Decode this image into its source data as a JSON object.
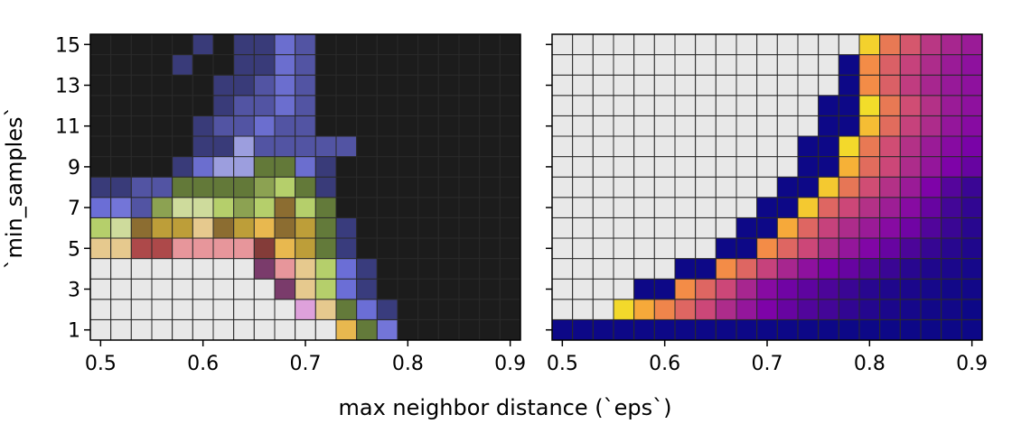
{
  "figure": {
    "xlabel": "max neighbor distance (`eps`)",
    "ylabel": "`min_samples`"
  },
  "chart_data": [
    {
      "type": "heatmap",
      "panel": "left",
      "xticks": [
        "0.5",
        "0.6",
        "0.7",
        "0.8",
        "0.9"
      ],
      "yticks": [
        "1",
        "3",
        "5",
        "7",
        "9",
        "11",
        "13",
        "15"
      ],
      "x": [
        0.5,
        0.52,
        0.54,
        0.56,
        0.58,
        0.6,
        0.62,
        0.64,
        0.66,
        0.68,
        0.7,
        0.72,
        0.74,
        0.76,
        0.78,
        0.8,
        0.82,
        0.84,
        0.86,
        0.88,
        0.9
      ],
      "y": [
        1,
        2,
        3,
        4,
        5,
        6,
        7,
        8,
        9,
        10,
        11,
        12,
        13,
        14,
        15
      ],
      "xlim": [
        0.49,
        0.91
      ],
      "ylim": [
        0.5,
        15.5
      ],
      "grid": true,
      "cell_colors": [
        [
          "#e8e8e8",
          "#e8e8e8",
          "#e8e8e8",
          "#e8e8e8",
          "#e8e8e8",
          "#e8e8e8",
          "#e8e8e8",
          "#e8e8e8",
          "#e8e8e8",
          "#e8e8e8",
          "#e8e8e8",
          "#e8e8e8",
          "#e8b84f",
          "#637a3a",
          "#7375d8",
          "#1c1c1c",
          "#1c1c1c",
          "#1c1c1c",
          "#1c1c1c",
          "#1c1c1c",
          "#1c1c1c"
        ],
        [
          "#e8e8e8",
          "#e8e8e8",
          "#e8e8e8",
          "#e8e8e8",
          "#e8e8e8",
          "#e8e8e8",
          "#e8e8e8",
          "#e8e8e8",
          "#e8e8e8",
          "#e8e8e8",
          "#dea1db",
          "#e6c98e",
          "#637a3a",
          "#6b6ed6",
          "#393c7d",
          "#1c1c1c",
          "#1c1c1c",
          "#1c1c1c",
          "#1c1c1c",
          "#1c1c1c",
          "#1c1c1c"
        ],
        [
          "#e8e8e8",
          "#e8e8e8",
          "#e8e8e8",
          "#e8e8e8",
          "#e8e8e8",
          "#e8e8e8",
          "#e8e8e8",
          "#e8e8e8",
          "#e8e8e8",
          "#7a3b6b",
          "#e6c98e",
          "#b5cf6b",
          "#6b6ed6",
          "#393c7d",
          "#1c1c1c",
          "#1c1c1c",
          "#1c1c1c",
          "#1c1c1c",
          "#1c1c1c",
          "#1c1c1c",
          "#1c1c1c"
        ],
        [
          "#e8e8e8",
          "#e8e8e8",
          "#e8e8e8",
          "#e8e8e8",
          "#e8e8e8",
          "#e8e8e8",
          "#e8e8e8",
          "#e8e8e8",
          "#7a3b6b",
          "#e7969b",
          "#e6c98e",
          "#b5cf6b",
          "#6b6ed6",
          "#393c7d",
          "#1c1c1c",
          "#1c1c1c",
          "#1c1c1c",
          "#1c1c1c",
          "#1c1c1c",
          "#1c1c1c",
          "#1c1c1c"
        ],
        [
          "#e6c98e",
          "#e6c98e",
          "#ad494a",
          "#ad494a",
          "#e7969b",
          "#e7969b",
          "#e7969b",
          "#e7969b",
          "#843c39",
          "#e8b84f",
          "#bd9e39",
          "#637a3a",
          "#393c7d",
          "#1c1c1c",
          "#1c1c1c",
          "#1c1c1c",
          "#1c1c1c",
          "#1c1c1c",
          "#1c1c1c",
          "#1c1c1c",
          "#1c1c1c"
        ],
        [
          "#b5cf6b",
          "#cedb9c",
          "#8c6d31",
          "#bd9e39",
          "#bd9e39",
          "#e6c98e",
          "#8c6d31",
          "#bd9e39",
          "#e8b84f",
          "#8c6d31",
          "#bd9e39",
          "#637a3a",
          "#393c7d",
          "#1c1c1c",
          "#1c1c1c",
          "#1c1c1c",
          "#1c1c1c",
          "#1c1c1c",
          "#1c1c1c",
          "#1c1c1c",
          "#1c1c1c"
        ],
        [
          "#6b6ed6",
          "#7375d8",
          "#5254a3",
          "#8ca252",
          "#cedb9c",
          "#cedb9c",
          "#b5cf6b",
          "#8ca252",
          "#b5cf6b",
          "#8c6d31",
          "#b5cf6b",
          "#637a3a",
          "#1c1c1c",
          "#1c1c1c",
          "#1c1c1c",
          "#1c1c1c",
          "#1c1c1c",
          "#1c1c1c",
          "#1c1c1c",
          "#1c1c1c",
          "#1c1c1c"
        ],
        [
          "#393b79",
          "#393b79",
          "#5254a3",
          "#5254a3",
          "#637939",
          "#637939",
          "#637939",
          "#637939",
          "#8ca252",
          "#b5cf6b",
          "#637939",
          "#393b79",
          "#1c1c1c",
          "#1c1c1c",
          "#1c1c1c",
          "#1c1c1c",
          "#1c1c1c",
          "#1c1c1c",
          "#1c1c1c",
          "#1c1c1c",
          "#1c1c1c"
        ],
        [
          "#1c1c1c",
          "#1c1c1c",
          "#1c1c1c",
          "#1c1c1c",
          "#393b79",
          "#6b6ecf",
          "#9c9ede",
          "#9c9ede",
          "#637939",
          "#637939",
          "#6b6ecf",
          "#393b79",
          "#1c1c1c",
          "#1c1c1c",
          "#1c1c1c",
          "#1c1c1c",
          "#1c1c1c",
          "#1c1c1c",
          "#1c1c1c",
          "#1c1c1c",
          "#1c1c1c"
        ],
        [
          "#1c1c1c",
          "#1c1c1c",
          "#1c1c1c",
          "#1c1c1c",
          "#1c1c1c",
          "#393b79",
          "#393b79",
          "#9c9ede",
          "#5254a3",
          "#5254a3",
          "#5254a3",
          "#5254a3",
          "#5254a3",
          "#1c1c1c",
          "#1c1c1c",
          "#1c1c1c",
          "#1c1c1c",
          "#1c1c1c",
          "#1c1c1c",
          "#1c1c1c",
          "#1c1c1c"
        ],
        [
          "#1c1c1c",
          "#1c1c1c",
          "#1c1c1c",
          "#1c1c1c",
          "#1c1c1c",
          "#393b79",
          "#5254a3",
          "#5254a3",
          "#6b6ecf",
          "#5254a3",
          "#5254a3",
          "#1c1c1c",
          "#1c1c1c",
          "#1c1c1c",
          "#1c1c1c",
          "#1c1c1c",
          "#1c1c1c",
          "#1c1c1c",
          "#1c1c1c",
          "#1c1c1c",
          "#1c1c1c"
        ],
        [
          "#1c1c1c",
          "#1c1c1c",
          "#1c1c1c",
          "#1c1c1c",
          "#1c1c1c",
          "#1c1c1c",
          "#393b79",
          "#5254a3",
          "#5254a3",
          "#6b6ecf",
          "#5254a3",
          "#1c1c1c",
          "#1c1c1c",
          "#1c1c1c",
          "#1c1c1c",
          "#1c1c1c",
          "#1c1c1c",
          "#1c1c1c",
          "#1c1c1c",
          "#1c1c1c",
          "#1c1c1c"
        ],
        [
          "#1c1c1c",
          "#1c1c1c",
          "#1c1c1c",
          "#1c1c1c",
          "#1c1c1c",
          "#1c1c1c",
          "#393b79",
          "#393b79",
          "#5254a3",
          "#6b6ecf",
          "#5254a3",
          "#1c1c1c",
          "#1c1c1c",
          "#1c1c1c",
          "#1c1c1c",
          "#1c1c1c",
          "#1c1c1c",
          "#1c1c1c",
          "#1c1c1c",
          "#1c1c1c",
          "#1c1c1c"
        ],
        [
          "#1c1c1c",
          "#1c1c1c",
          "#1c1c1c",
          "#1c1c1c",
          "#393b79",
          "#1c1c1c",
          "#1c1c1c",
          "#393b79",
          "#393b79",
          "#6b6ecf",
          "#5254a3",
          "#1c1c1c",
          "#1c1c1c",
          "#1c1c1c",
          "#1c1c1c",
          "#1c1c1c",
          "#1c1c1c",
          "#1c1c1c",
          "#1c1c1c",
          "#1c1c1c",
          "#1c1c1c"
        ],
        [
          "#1c1c1c",
          "#1c1c1c",
          "#1c1c1c",
          "#1c1c1c",
          "#1c1c1c",
          "#393b79",
          "#1c1c1c",
          "#393b79",
          "#393b79",
          "#6b6ecf",
          "#5254a3",
          "#1c1c1c",
          "#1c1c1c",
          "#1c1c1c",
          "#1c1c1c",
          "#1c1c1c",
          "#1c1c1c",
          "#1c1c1c",
          "#1c1c1c",
          "#1c1c1c",
          "#1c1c1c"
        ]
      ]
    },
    {
      "type": "heatmap",
      "panel": "right",
      "colormap": "plasma",
      "xticks": [
        "0.5",
        "0.6",
        "0.7",
        "0.8",
        "0.9"
      ],
      "yticks": [
        "",
        "",
        "",
        "",
        "",
        "",
        "",
        ""
      ],
      "x": [
        0.5,
        0.52,
        0.54,
        0.56,
        0.58,
        0.6,
        0.62,
        0.64,
        0.66,
        0.68,
        0.7,
        0.72,
        0.74,
        0.76,
        0.78,
        0.8,
        0.82,
        0.84,
        0.86,
        0.88,
        0.9
      ],
      "y": [
        1,
        2,
        3,
        4,
        5,
        6,
        7,
        8,
        9,
        10,
        11,
        12,
        13,
        14,
        15
      ],
      "xlim": [
        0.49,
        0.91
      ],
      "ylim": [
        0.5,
        15.5
      ],
      "grid": true,
      "empty_color": "#e8e8e8",
      "empty_threshold": [
        99,
        3,
        4,
        6,
        8,
        9,
        10,
        11,
        12,
        12,
        13,
        13,
        14,
        14,
        15
      ],
      "values": [
        [
          0,
          0,
          0,
          0,
          0,
          0,
          0,
          0,
          0,
          0,
          0,
          0,
          0,
          0,
          0,
          0,
          0,
          0,
          0,
          0,
          0
        ],
        [
          0,
          0,
          0,
          0.92,
          0.8,
          0.7,
          0.6,
          0.5,
          0.4,
          0.32,
          0.25,
          0.2,
          0.15,
          0.12,
          0.08,
          0.05,
          0.03,
          0.02,
          0.01,
          0.01,
          0
        ],
        [
          0,
          0,
          0,
          0,
          0,
          0,
          0.72,
          0.6,
          0.5,
          0.38,
          0.28,
          0.22,
          0.18,
          0.14,
          0.1,
          0.06,
          0.04,
          0.03,
          0.02,
          0.01,
          0.01
        ],
        [
          0,
          0,
          0,
          0,
          0,
          0,
          0,
          0,
          0.72,
          0.6,
          0.48,
          0.38,
          0.3,
          0.24,
          0.2,
          0.15,
          0.1,
          0.06,
          0.04,
          0.03,
          0.02
        ],
        [
          0,
          0,
          0,
          0,
          0,
          0,
          0,
          0,
          0,
          0,
          0.72,
          0.6,
          0.5,
          0.4,
          0.32,
          0.26,
          0.2,
          0.14,
          0.09,
          0.06,
          0.04
        ],
        [
          0,
          0,
          0,
          0,
          0,
          0,
          0,
          0,
          0,
          0,
          0,
          0.8,
          0.6,
          0.48,
          0.4,
          0.34,
          0.28,
          0.22,
          0.15,
          0.1,
          0.06
        ],
        [
          0,
          0,
          0,
          0,
          0,
          0,
          0,
          0,
          0,
          0,
          0,
          0,
          0.88,
          0.6,
          0.5,
          0.42,
          0.35,
          0.28,
          0.2,
          0.12,
          0.08
        ],
        [
          0,
          0,
          0,
          0,
          0,
          0,
          0,
          0,
          0,
          0,
          0,
          0,
          0,
          0.88,
          0.65,
          0.52,
          0.42,
          0.34,
          0.25,
          0.16,
          0.1
        ],
        [
          0,
          0,
          0,
          0,
          0,
          0,
          0,
          0,
          0,
          0,
          0,
          0,
          0,
          0,
          0.82,
          0.62,
          0.5,
          0.4,
          0.32,
          0.25,
          0.2
        ],
        [
          0,
          0,
          0,
          0,
          0,
          0,
          0,
          0,
          0,
          0,
          0,
          0,
          0,
          0,
          0.92,
          0.66,
          0.52,
          0.42,
          0.34,
          0.28,
          0.24
        ],
        [
          0,
          0,
          0,
          0,
          0,
          0,
          0,
          0,
          0,
          0,
          0,
          0,
          0,
          0,
          0,
          0.85,
          0.62,
          0.48,
          0.4,
          0.32,
          0.28
        ],
        [
          0,
          0,
          0,
          0,
          0,
          0,
          0,
          0,
          0,
          0,
          0,
          0,
          0,
          0,
          0,
          0.93,
          0.66,
          0.52,
          0.42,
          0.34,
          0.3
        ],
        [
          0,
          0,
          0,
          0,
          0,
          0,
          0,
          0,
          0,
          0,
          0,
          0,
          0,
          0,
          0,
          0.72,
          0.58,
          0.46,
          0.38,
          0.33,
          0.3
        ],
        [
          0,
          0,
          0,
          0,
          0,
          0,
          0,
          0,
          0,
          0,
          0,
          0,
          0,
          0,
          0,
          0.72,
          0.58,
          0.48,
          0.4,
          0.34,
          0.3
        ],
        [
          0,
          0,
          0,
          0,
          0,
          0,
          0,
          0,
          0,
          0,
          0,
          0,
          0,
          0,
          0,
          0.9,
          0.66,
          0.55,
          0.44,
          0.38,
          0.34
        ]
      ]
    }
  ]
}
